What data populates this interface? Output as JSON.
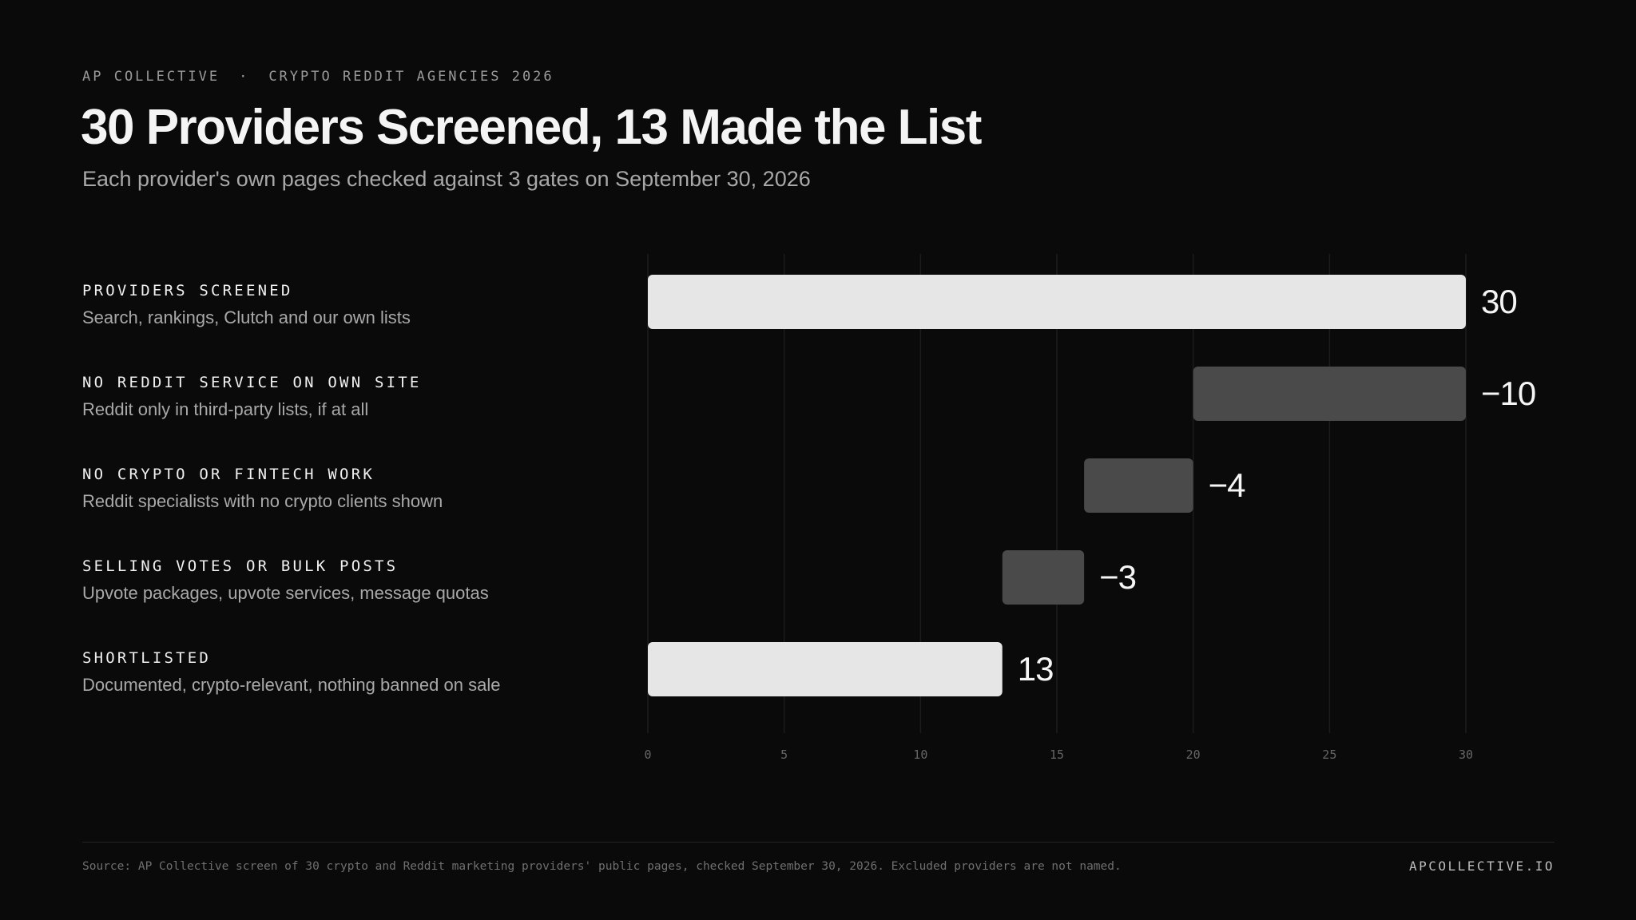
{
  "header": {
    "eyebrow_left": "AP COLLECTIVE",
    "eyebrow_sep": "·",
    "eyebrow_right": "CRYPTO REDDIT AGENCIES 2026",
    "title": "30 Providers Screened, 13 Made the List",
    "subtitle": "Each provider's own pages checked against 3 gates on September 30, 2026"
  },
  "colors": {
    "background": "#0a0a0a",
    "total_bar": "#e6e6e6",
    "excluded_bar": "#4a4a4a",
    "grid": "#1c1c1c"
  },
  "chart_data": {
    "type": "bar",
    "orientation": "horizontal",
    "style": "waterfall",
    "categories": [
      "PROVIDERS SCREENED",
      "NO REDDIT SERVICE ON OWN SITE",
      "NO CRYPTO OR FINTECH WORK",
      "SELLING VOTES OR BULK POSTS",
      "SHORTLISTED"
    ],
    "descriptions": [
      "Search, rankings, Clutch and our own lists",
      "Reddit only in third-party lists, if at all",
      "Reddit specialists with no crypto clients shown",
      "Upvote packages, upvote services, message quotas",
      "Documented, crypto-relevant, nothing banned on sale"
    ],
    "bars": [
      {
        "start": 0,
        "end": 30,
        "label": "30",
        "kind": "total"
      },
      {
        "start": 20,
        "end": 30,
        "label": "−10",
        "kind": "excluded"
      },
      {
        "start": 16,
        "end": 20,
        "label": "−4",
        "kind": "excluded"
      },
      {
        "start": 13,
        "end": 16,
        "label": "−3",
        "kind": "excluded"
      },
      {
        "start": 0,
        "end": 13,
        "label": "13",
        "kind": "total"
      }
    ],
    "xlim": [
      0,
      30
    ],
    "xticks": [
      0,
      5,
      10,
      15,
      20,
      25,
      30
    ],
    "grid": true
  },
  "footer": {
    "source": "Source: AP Collective screen of 30 crypto and Reddit marketing providers' public pages, checked September 30, 2026. Excluded providers are not named.",
    "brand": "APCOLLECTIVE.IO"
  }
}
